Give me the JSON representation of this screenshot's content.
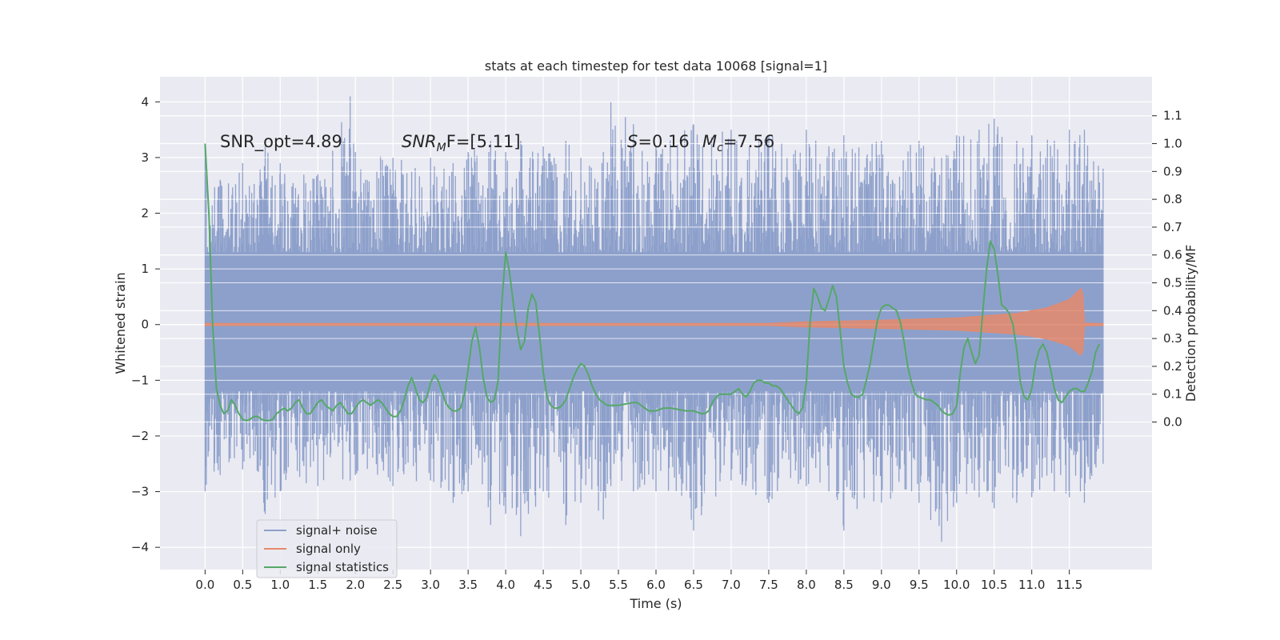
{
  "chart_data": {
    "type": "line",
    "title": "stats at each timestep for test data 10068 [signal=1]",
    "xlabel": "Time (s)",
    "ylabel_left": "Whitened strain",
    "ylabel_right": "Detection probability/MF",
    "xlim": [
      -0.6,
      12.6
    ],
    "ylim_left": [
      -4.4,
      4.45
    ],
    "ylim_right": [
      -0.53,
      1.24
    ],
    "x_ticks": [
      0.0,
      0.5,
      1.0,
      1.5,
      2.0,
      2.5,
      3.0,
      3.5,
      4.0,
      4.5,
      5.0,
      5.5,
      6.0,
      6.5,
      7.0,
      7.5,
      8.0,
      8.5,
      9.0,
      9.5,
      10.0,
      10.5,
      11.0,
      11.5
    ],
    "x_tick_labels": [
      "0.0",
      "0.5",
      "1.0",
      "1.5",
      "2.0",
      "2.5",
      "3.0",
      "3.5",
      "4.0",
      "4.5",
      "5.0",
      "5.5",
      "6.0",
      "6.5",
      "7.0",
      "7.5",
      "8.0",
      "8.5",
      "9.0",
      "9.5",
      "10.0",
      "10.5",
      "11.0",
      "11.5"
    ],
    "y_left_ticks": [
      -4,
      -3,
      -2,
      -1,
      0,
      1,
      2,
      3,
      4
    ],
    "y_left_tick_labels": [
      "−4",
      "−3",
      "−2",
      "−1",
      "0",
      "1",
      "2",
      "3",
      "4"
    ],
    "y_right_ticks": [
      0.0,
      0.1,
      0.2,
      0.3,
      0.4,
      0.5,
      0.6,
      0.7,
      0.8,
      0.9,
      1.0,
      1.1
    ],
    "y_right_tick_labels": [
      "0.0",
      "0.1",
      "0.2",
      "0.3",
      "0.4",
      "0.5",
      "0.6",
      "0.7",
      "0.8",
      "0.9",
      "1.0",
      "1.1"
    ],
    "grid": true,
    "legend_position": "lower-left",
    "annotations": {
      "snr_opt": "SNR_opt=4.89",
      "snr_mf_sym": "SNR",
      "snr_mf_sub": "M",
      "snr_mf_rest": "F=[5.11]",
      "s_sym": "S",
      "s_rest": "=0.16",
      "mc_sym": "M",
      "mc_sub": "c",
      "mc_rest": "=7.56"
    },
    "series": [
      {
        "name": "signal+ noise",
        "color": "#8da0cb",
        "axis": "left",
        "t_range": [
          0.0,
          11.95
        ],
        "envelope_points": [
          [
            0.0,
            3.2,
            -3.0
          ],
          [
            0.2,
            2.6,
            -2.7
          ],
          [
            0.5,
            2.9,
            -2.6
          ],
          [
            0.8,
            3.2,
            -3.4
          ],
          [
            1.0,
            2.9,
            -3.0
          ],
          [
            1.5,
            2.7,
            -2.9
          ],
          [
            1.93,
            4.1,
            -2.8
          ],
          [
            2.0,
            3.1,
            -2.7
          ],
          [
            2.5,
            3.0,
            -2.9
          ],
          [
            3.0,
            3.0,
            -2.8
          ],
          [
            3.3,
            2.9,
            -3.2
          ],
          [
            3.5,
            3.1,
            -3.0
          ],
          [
            3.8,
            3.3,
            -3.6
          ],
          [
            4.0,
            3.1,
            -3.4
          ],
          [
            4.2,
            3.3,
            -3.8
          ],
          [
            4.5,
            3.2,
            -3.0
          ],
          [
            4.8,
            3.3,
            -3.6
          ],
          [
            5.0,
            3.0,
            -3.2
          ],
          [
            5.3,
            3.1,
            -3.5
          ],
          [
            5.4,
            4.0,
            -2.9
          ],
          [
            5.7,
            3.6,
            -3.0
          ],
          [
            6.0,
            3.2,
            -3.0
          ],
          [
            6.5,
            3.6,
            -3.7
          ],
          [
            7.0,
            3.5,
            -2.8
          ],
          [
            7.5,
            3.4,
            -3.2
          ],
          [
            8.0,
            3.5,
            -2.9
          ],
          [
            8.3,
            3.2,
            -3.0
          ],
          [
            8.5,
            3.4,
            -3.7
          ],
          [
            9.0,
            3.3,
            -3.2
          ],
          [
            9.5,
            3.3,
            -3.2
          ],
          [
            9.8,
            3.0,
            -3.9
          ],
          [
            10.0,
            3.4,
            -3.2
          ],
          [
            10.3,
            3.5,
            -3.1
          ],
          [
            10.5,
            3.7,
            -3.3
          ],
          [
            10.8,
            3.3,
            -3.2
          ],
          [
            11.0,
            3.4,
            -3.1
          ],
          [
            11.3,
            3.3,
            -3.0
          ],
          [
            11.5,
            3.5,
            -3.1
          ],
          [
            11.7,
            3.5,
            -3.2
          ],
          [
            11.95,
            2.8,
            -2.5
          ]
        ],
        "body_range": [
          -1.2,
          1.3
        ]
      },
      {
        "name": "signal only",
        "color": "#e5896c",
        "axis": "left",
        "envelope": [
          [
            0.0,
            0.02
          ],
          [
            7.5,
            0.02
          ],
          [
            8.0,
            0.05
          ],
          [
            9.0,
            0.08
          ],
          [
            10.0,
            0.12
          ],
          [
            10.8,
            0.2
          ],
          [
            11.2,
            0.3
          ],
          [
            11.5,
            0.45
          ],
          [
            11.6,
            0.58
          ],
          [
            11.65,
            0.65
          ],
          [
            11.68,
            0.55
          ],
          [
            11.7,
            0.03
          ],
          [
            11.95,
            0.02
          ]
        ]
      },
      {
        "name": "signal statistics",
        "color": "#55a868",
        "axis": "right",
        "points": [
          [
            0.0,
            1.0
          ],
          [
            0.05,
            0.75
          ],
          [
            0.1,
            0.35
          ],
          [
            0.15,
            0.12
          ],
          [
            0.2,
            0.06
          ],
          [
            0.25,
            0.03
          ],
          [
            0.3,
            0.04
          ],
          [
            0.35,
            0.08
          ],
          [
            0.4,
            0.06
          ],
          [
            0.45,
            0.03
          ],
          [
            0.5,
            0.01
          ],
          [
            0.55,
            0.005
          ],
          [
            0.6,
            0.01
          ],
          [
            0.65,
            0.02
          ],
          [
            0.7,
            0.02
          ],
          [
            0.75,
            0.01
          ],
          [
            0.8,
            0.005
          ],
          [
            0.85,
            0.005
          ],
          [
            0.9,
            0.01
          ],
          [
            0.95,
            0.03
          ],
          [
            1.0,
            0.04
          ],
          [
            1.05,
            0.05
          ],
          [
            1.1,
            0.04
          ],
          [
            1.15,
            0.05
          ],
          [
            1.2,
            0.07
          ],
          [
            1.25,
            0.08
          ],
          [
            1.3,
            0.05
          ],
          [
            1.35,
            0.03
          ],
          [
            1.4,
            0.03
          ],
          [
            1.45,
            0.05
          ],
          [
            1.5,
            0.07
          ],
          [
            1.55,
            0.08
          ],
          [
            1.6,
            0.06
          ],
          [
            1.65,
            0.05
          ],
          [
            1.7,
            0.04
          ],
          [
            1.75,
            0.06
          ],
          [
            1.8,
            0.07
          ],
          [
            1.85,
            0.05
          ],
          [
            1.9,
            0.03
          ],
          [
            1.95,
            0.03
          ],
          [
            2.0,
            0.05
          ],
          [
            2.05,
            0.07
          ],
          [
            2.1,
            0.08
          ],
          [
            2.15,
            0.07
          ],
          [
            2.2,
            0.06
          ],
          [
            2.25,
            0.07
          ],
          [
            2.3,
            0.08
          ],
          [
            2.35,
            0.07
          ],
          [
            2.4,
            0.05
          ],
          [
            2.45,
            0.03
          ],
          [
            2.5,
            0.02
          ],
          [
            2.55,
            0.02
          ],
          [
            2.6,
            0.04
          ],
          [
            2.65,
            0.08
          ],
          [
            2.7,
            0.13
          ],
          [
            2.75,
            0.16
          ],
          [
            2.8,
            0.12
          ],
          [
            2.85,
            0.08
          ],
          [
            2.9,
            0.07
          ],
          [
            2.95,
            0.09
          ],
          [
            3.0,
            0.14
          ],
          [
            3.05,
            0.17
          ],
          [
            3.1,
            0.15
          ],
          [
            3.15,
            0.11
          ],
          [
            3.2,
            0.07
          ],
          [
            3.25,
            0.05
          ],
          [
            3.3,
            0.04
          ],
          [
            3.35,
            0.04
          ],
          [
            3.4,
            0.05
          ],
          [
            3.45,
            0.1
          ],
          [
            3.5,
            0.19
          ],
          [
            3.55,
            0.29
          ],
          [
            3.6,
            0.34
          ],
          [
            3.65,
            0.27
          ],
          [
            3.7,
            0.16
          ],
          [
            3.75,
            0.09
          ],
          [
            3.8,
            0.07
          ],
          [
            3.85,
            0.08
          ],
          [
            3.9,
            0.15
          ],
          [
            3.95,
            0.43
          ],
          [
            4.0,
            0.61
          ],
          [
            4.05,
            0.54
          ],
          [
            4.1,
            0.43
          ],
          [
            4.15,
            0.33
          ],
          [
            4.2,
            0.26
          ],
          [
            4.25,
            0.29
          ],
          [
            4.3,
            0.41
          ],
          [
            4.35,
            0.46
          ],
          [
            4.4,
            0.43
          ],
          [
            4.45,
            0.31
          ],
          [
            4.5,
            0.18
          ],
          [
            4.55,
            0.09
          ],
          [
            4.6,
            0.06
          ],
          [
            4.65,
            0.05
          ],
          [
            4.7,
            0.05
          ],
          [
            4.75,
            0.06
          ],
          [
            4.8,
            0.08
          ],
          [
            4.85,
            0.12
          ],
          [
            4.9,
            0.16
          ],
          [
            4.95,
            0.19
          ],
          [
            5.0,
            0.21
          ],
          [
            5.05,
            0.2
          ],
          [
            5.1,
            0.17
          ],
          [
            5.15,
            0.13
          ],
          [
            5.2,
            0.1
          ],
          [
            5.25,
            0.08
          ],
          [
            5.3,
            0.07
          ],
          [
            5.35,
            0.06
          ],
          [
            5.4,
            0.06
          ],
          [
            5.5,
            0.06
          ],
          [
            5.6,
            0.065
          ],
          [
            5.7,
            0.07
          ],
          [
            5.75,
            0.07
          ],
          [
            5.8,
            0.06
          ],
          [
            5.85,
            0.05
          ],
          [
            5.9,
            0.04
          ],
          [
            6.0,
            0.04
          ],
          [
            6.1,
            0.05
          ],
          [
            6.2,
            0.05
          ],
          [
            6.3,
            0.045
          ],
          [
            6.4,
            0.04
          ],
          [
            6.5,
            0.04
          ],
          [
            6.6,
            0.03
          ],
          [
            6.65,
            0.03
          ],
          [
            6.7,
            0.04
          ],
          [
            6.75,
            0.07
          ],
          [
            6.8,
            0.09
          ],
          [
            6.85,
            0.1
          ],
          [
            6.9,
            0.1
          ],
          [
            6.95,
            0.1
          ],
          [
            7.0,
            0.1
          ],
          [
            7.05,
            0.11
          ],
          [
            7.1,
            0.12
          ],
          [
            7.15,
            0.1
          ],
          [
            7.2,
            0.09
          ],
          [
            7.25,
            0.11
          ],
          [
            7.3,
            0.14
          ],
          [
            7.35,
            0.15
          ],
          [
            7.4,
            0.15
          ],
          [
            7.45,
            0.14
          ],
          [
            7.5,
            0.14
          ],
          [
            7.55,
            0.13
          ],
          [
            7.6,
            0.13
          ],
          [
            7.65,
            0.12
          ],
          [
            7.7,
            0.1
          ],
          [
            7.75,
            0.08
          ],
          [
            7.8,
            0.06
          ],
          [
            7.85,
            0.04
          ],
          [
            7.9,
            0.03
          ],
          [
            7.95,
            0.05
          ],
          [
            8.0,
            0.14
          ],
          [
            8.05,
            0.36
          ],
          [
            8.1,
            0.48
          ],
          [
            8.15,
            0.45
          ],
          [
            8.2,
            0.41
          ],
          [
            8.25,
            0.4
          ],
          [
            8.3,
            0.44
          ],
          [
            8.35,
            0.49
          ],
          [
            8.4,
            0.45
          ],
          [
            8.45,
            0.33
          ],
          [
            8.5,
            0.2
          ],
          [
            8.55,
            0.14
          ],
          [
            8.6,
            0.1
          ],
          [
            8.65,
            0.09
          ],
          [
            8.7,
            0.09
          ],
          [
            8.75,
            0.1
          ],
          [
            8.8,
            0.15
          ],
          [
            8.85,
            0.21
          ],
          [
            8.9,
            0.29
          ],
          [
            8.95,
            0.37
          ],
          [
            9.0,
            0.41
          ],
          [
            9.05,
            0.42
          ],
          [
            9.1,
            0.42
          ],
          [
            9.15,
            0.41
          ],
          [
            9.2,
            0.4
          ],
          [
            9.25,
            0.36
          ],
          [
            9.3,
            0.29
          ],
          [
            9.35,
            0.2
          ],
          [
            9.4,
            0.14
          ],
          [
            9.45,
            0.1
          ],
          [
            9.5,
            0.09
          ],
          [
            9.55,
            0.085
          ],
          [
            9.6,
            0.08
          ],
          [
            9.65,
            0.08
          ],
          [
            9.7,
            0.07
          ],
          [
            9.75,
            0.06
          ],
          [
            9.8,
            0.04
          ],
          [
            9.85,
            0.03
          ],
          [
            9.9,
            0.025
          ],
          [
            9.95,
            0.03
          ],
          [
            10.0,
            0.06
          ],
          [
            10.05,
            0.18
          ],
          [
            10.1,
            0.27
          ],
          [
            10.15,
            0.3
          ],
          [
            10.2,
            0.25
          ],
          [
            10.25,
            0.21
          ],
          [
            10.3,
            0.24
          ],
          [
            10.35,
            0.4
          ],
          [
            10.4,
            0.55
          ],
          [
            10.45,
            0.65
          ],
          [
            10.5,
            0.62
          ],
          [
            10.55,
            0.53
          ],
          [
            10.6,
            0.42
          ],
          [
            10.65,
            0.41
          ],
          [
            10.7,
            0.39
          ],
          [
            10.75,
            0.35
          ],
          [
            10.8,
            0.26
          ],
          [
            10.85,
            0.14
          ],
          [
            10.9,
            0.09
          ],
          [
            10.95,
            0.08
          ],
          [
            11.0,
            0.12
          ],
          [
            11.05,
            0.21
          ],
          [
            11.1,
            0.26
          ],
          [
            11.15,
            0.28
          ],
          [
            11.2,
            0.25
          ],
          [
            11.25,
            0.19
          ],
          [
            11.3,
            0.12
          ],
          [
            11.35,
            0.08
          ],
          [
            11.4,
            0.07
          ],
          [
            11.45,
            0.09
          ],
          [
            11.5,
            0.11
          ],
          [
            11.55,
            0.12
          ],
          [
            11.6,
            0.12
          ],
          [
            11.65,
            0.11
          ],
          [
            11.7,
            0.11
          ],
          [
            11.75,
            0.14
          ],
          [
            11.8,
            0.18
          ],
          [
            11.85,
            0.25
          ],
          [
            11.9,
            0.28
          ]
        ]
      }
    ]
  }
}
